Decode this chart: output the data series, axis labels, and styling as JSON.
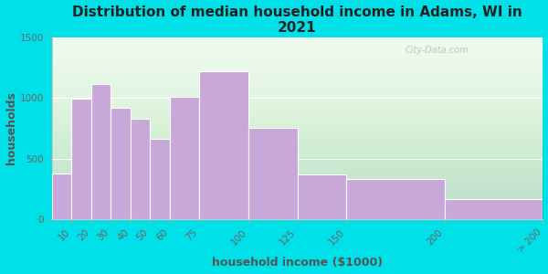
{
  "title": "Distribution of median household income in Adams, WI in\n2021",
  "xlabel": "household income ($1000)",
  "ylabel": "households",
  "bar_labels": [
    "10",
    "20",
    "30",
    "40",
    "50",
    "60",
    "75",
    "100",
    "125",
    "150",
    "200",
    "> 200"
  ],
  "bar_values": [
    380,
    990,
    1110,
    920,
    830,
    660,
    1010,
    1220,
    750,
    370,
    330,
    170
  ],
  "bar_edges": [
    0,
    10,
    20,
    30,
    40,
    50,
    60,
    75,
    100,
    125,
    150,
    200,
    250
  ],
  "bar_color": "#c8a8d8",
  "bar_edgecolor": "white",
  "background_outer": "#00e0e8",
  "background_inner": "#edfaed",
  "ylim": [
    0,
    1500
  ],
  "yticks": [
    0,
    500,
    1000,
    1500
  ],
  "xtick_positions": [
    10,
    20,
    30,
    40,
    50,
    60,
    75,
    100,
    125,
    150,
    200,
    250
  ],
  "xtick_labels": [
    "10",
    "20",
    "30",
    "40",
    "50",
    "60",
    "75",
    "100",
    "125",
    "150",
    "200",
    "> 200"
  ],
  "title_fontsize": 11,
  "axis_label_fontsize": 9,
  "tick_fontsize": 7.5,
  "watermark": "City-Data.com",
  "tick_color": "#666666",
  "label_color": "#555555",
  "title_color": "#222222",
  "gradient_top_color": "#d4f0d4",
  "gradient_bottom_color": "#f5fff5"
}
